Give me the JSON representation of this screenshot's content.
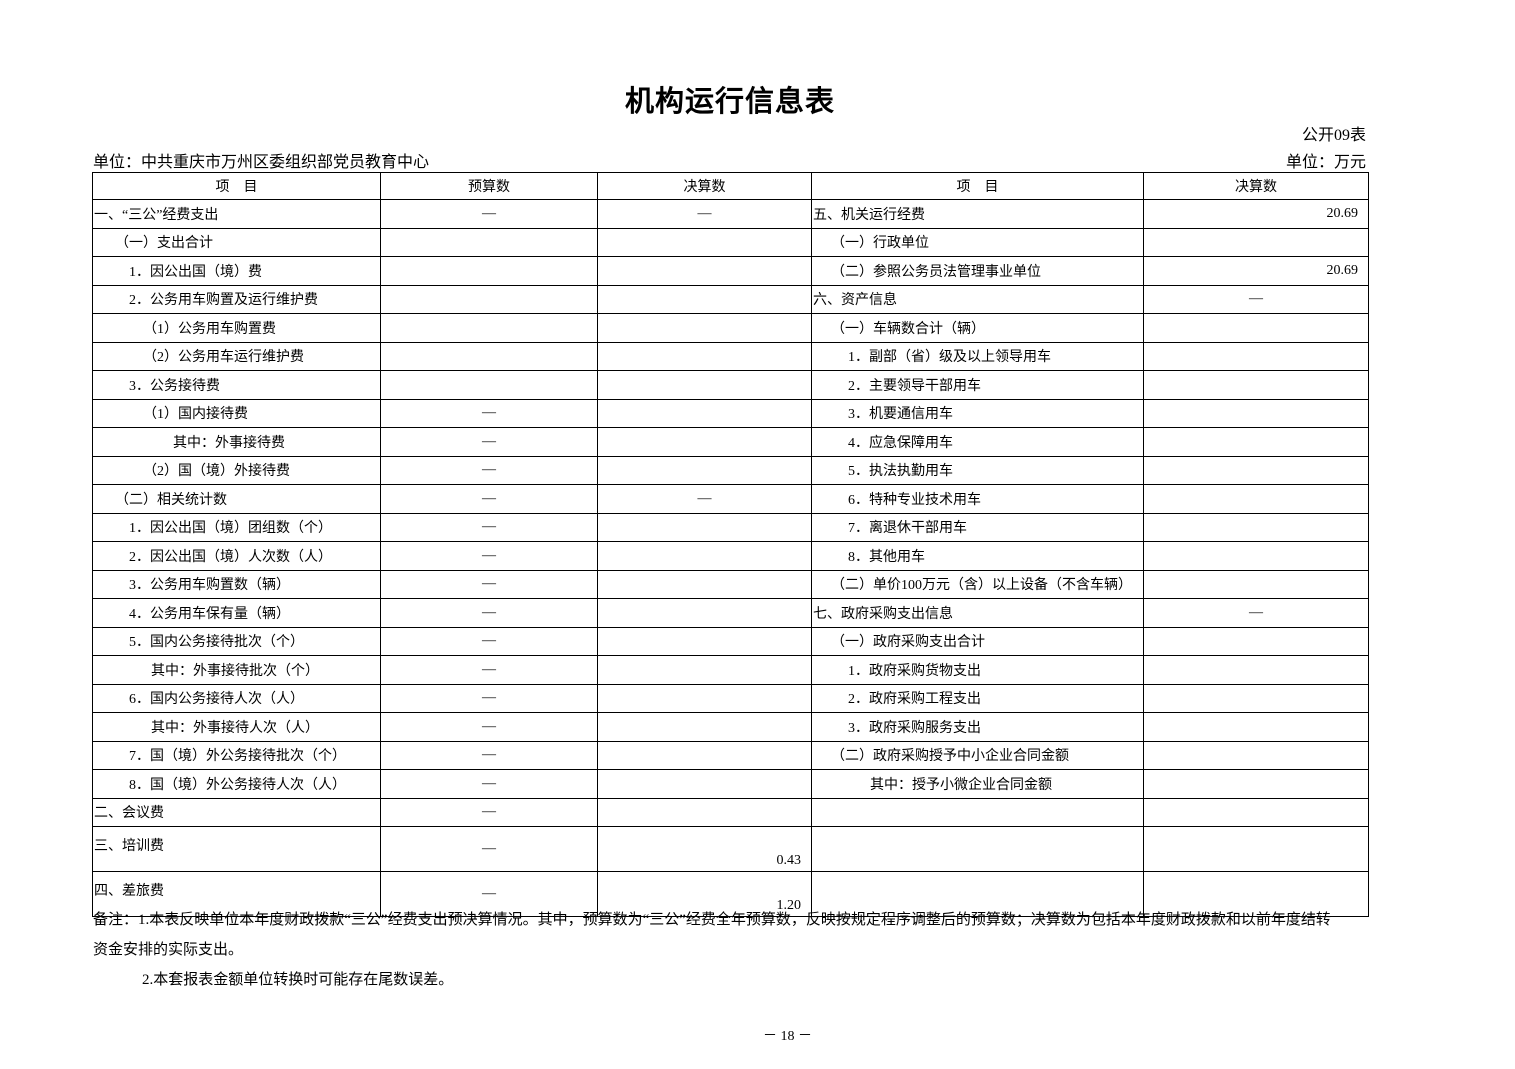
{
  "title": "机构运行信息表",
  "table_code": "公开09表",
  "unit_org": "单位：中共重庆市万州区委组织部党员教育中心",
  "unit_money": "单位：万元",
  "headers": [
    "项　目",
    "预算数",
    "决算数",
    "项　目",
    "决算数"
  ],
  "rows": [
    {
      "l": "一、“三公”经费支出",
      "ll": 0,
      "b": "—",
      "f": "—",
      "r": "五、机关运行经费",
      "rl": 0,
      "rf": "20.69"
    },
    {
      "l": "（一）支出合计",
      "ll": 1,
      "b": "",
      "f": "",
      "r": "（一）行政单位",
      "rl": 1,
      "rf": ""
    },
    {
      "l": "1．因公出国（境）费",
      "ll": 2,
      "b": "",
      "f": "",
      "r": "（二）参照公务员法管理事业单位",
      "rl": 1,
      "rf": "20.69"
    },
    {
      "l": "2．公务用车购置及运行维护费",
      "ll": 2,
      "b": "",
      "f": "",
      "r": "六、资产信息",
      "rl": 0,
      "rf": "—"
    },
    {
      "l": "（1）公务用车购置费",
      "ll": 3,
      "b": "",
      "f": "",
      "r": "（一）车辆数合计（辆）",
      "rl": 1,
      "rf": ""
    },
    {
      "l": "（2）公务用车运行维护费",
      "ll": 3,
      "b": "",
      "f": "",
      "r": "1．副部（省）级及以上领导用车",
      "rl": 2,
      "rf": ""
    },
    {
      "l": "3．公务接待费",
      "ll": 2,
      "b": "",
      "f": "",
      "r": "2．主要领导干部用车",
      "rl": 2,
      "rf": ""
    },
    {
      "l": "（1）国内接待费",
      "ll": 3,
      "b": "—",
      "f": "",
      "r": "3．机要通信用车",
      "rl": 2,
      "rf": ""
    },
    {
      "l": "其中：外事接待费",
      "ll": 5,
      "b": "—",
      "f": "",
      "r": "4．应急保障用车",
      "rl": 2,
      "rf": ""
    },
    {
      "l": "（2）国（境）外接待费",
      "ll": 3,
      "b": "—",
      "f": "",
      "r": "5．执法执勤用车",
      "rl": 2,
      "rf": ""
    },
    {
      "l": "（二）相关统计数",
      "ll": 1,
      "b": "—",
      "f": "—",
      "r": "6．特种专业技术用车",
      "rl": 2,
      "rf": ""
    },
    {
      "l": "1．因公出国（境）团组数（个）",
      "ll": 2,
      "b": "—",
      "f": "",
      "r": "7．离退休干部用车",
      "rl": 2,
      "rf": ""
    },
    {
      "l": "2．因公出国（境）人次数（人）",
      "ll": 2,
      "b": "—",
      "f": "",
      "r": "8．其他用车",
      "rl": 2,
      "rf": ""
    },
    {
      "l": "3．公务用车购置数（辆）",
      "ll": 2,
      "b": "—",
      "f": "",
      "r": "（二）单价100万元（含）以上设备（不含车辆）",
      "rl": 1,
      "rf": ""
    },
    {
      "l": "4．公务用车保有量（辆）",
      "ll": 2,
      "b": "—",
      "f": "",
      "r": "七、政府采购支出信息",
      "rl": 0,
      "rf": "—"
    },
    {
      "l": "5．国内公务接待批次（个）",
      "ll": 2,
      "b": "—",
      "f": "",
      "r": "（一）政府采购支出合计",
      "rl": 1,
      "rf": ""
    },
    {
      "l": "其中：外事接待批次（个）",
      "ll": 4,
      "b": "—",
      "f": "",
      "r": "1．政府采购货物支出",
      "rl": 2,
      "rf": ""
    },
    {
      "l": "6．国内公务接待人次（人）",
      "ll": 2,
      "b": "—",
      "f": "",
      "r": "2．政府采购工程支出",
      "rl": 2,
      "rf": ""
    },
    {
      "l": "其中：外事接待人次（人）",
      "ll": 4,
      "b": "—",
      "f": "",
      "r": "3．政府采购服务支出",
      "rl": 2,
      "rf": ""
    },
    {
      "l": "7．国（境）外公务接待批次（个）",
      "ll": 2,
      "b": "—",
      "f": "",
      "r": "（二）政府采购授予中小企业合同金额",
      "rl": 1,
      "rf": ""
    },
    {
      "l": "8．国（境）外公务接待人次（人）",
      "ll": 2,
      "b": "—",
      "f": "",
      "r": "其中：授予小微企业合同金额",
      "rl": 3,
      "rf": ""
    },
    {
      "l": "二、会议费",
      "ll": 0,
      "b": "—",
      "f": "",
      "r": "",
      "rl": 0,
      "rf": ""
    },
    {
      "l": "三、培训费",
      "ll": 0,
      "b": "—",
      "f": "0.43",
      "r": "",
      "rl": 0,
      "rf": "",
      "tall": true
    },
    {
      "l": "四、差旅费",
      "ll": 0,
      "b": "—",
      "f": "1.20",
      "r": "",
      "rl": 0,
      "rf": "",
      "tall": true
    }
  ],
  "notes": [
    "备注：1.本表反映单位本年度财政拨款“三公”经费支出预决算情况。其中，预算数为“三公”经费全年预算数，反映按规定程序调整后的预算数；决算数为包括本年度财政拨款和以前年度结转",
    "资金安排的实际支出。",
    "2.本套报表金额单位转换时可能存在尾数误差。"
  ],
  "page_number": "－ 18 －"
}
